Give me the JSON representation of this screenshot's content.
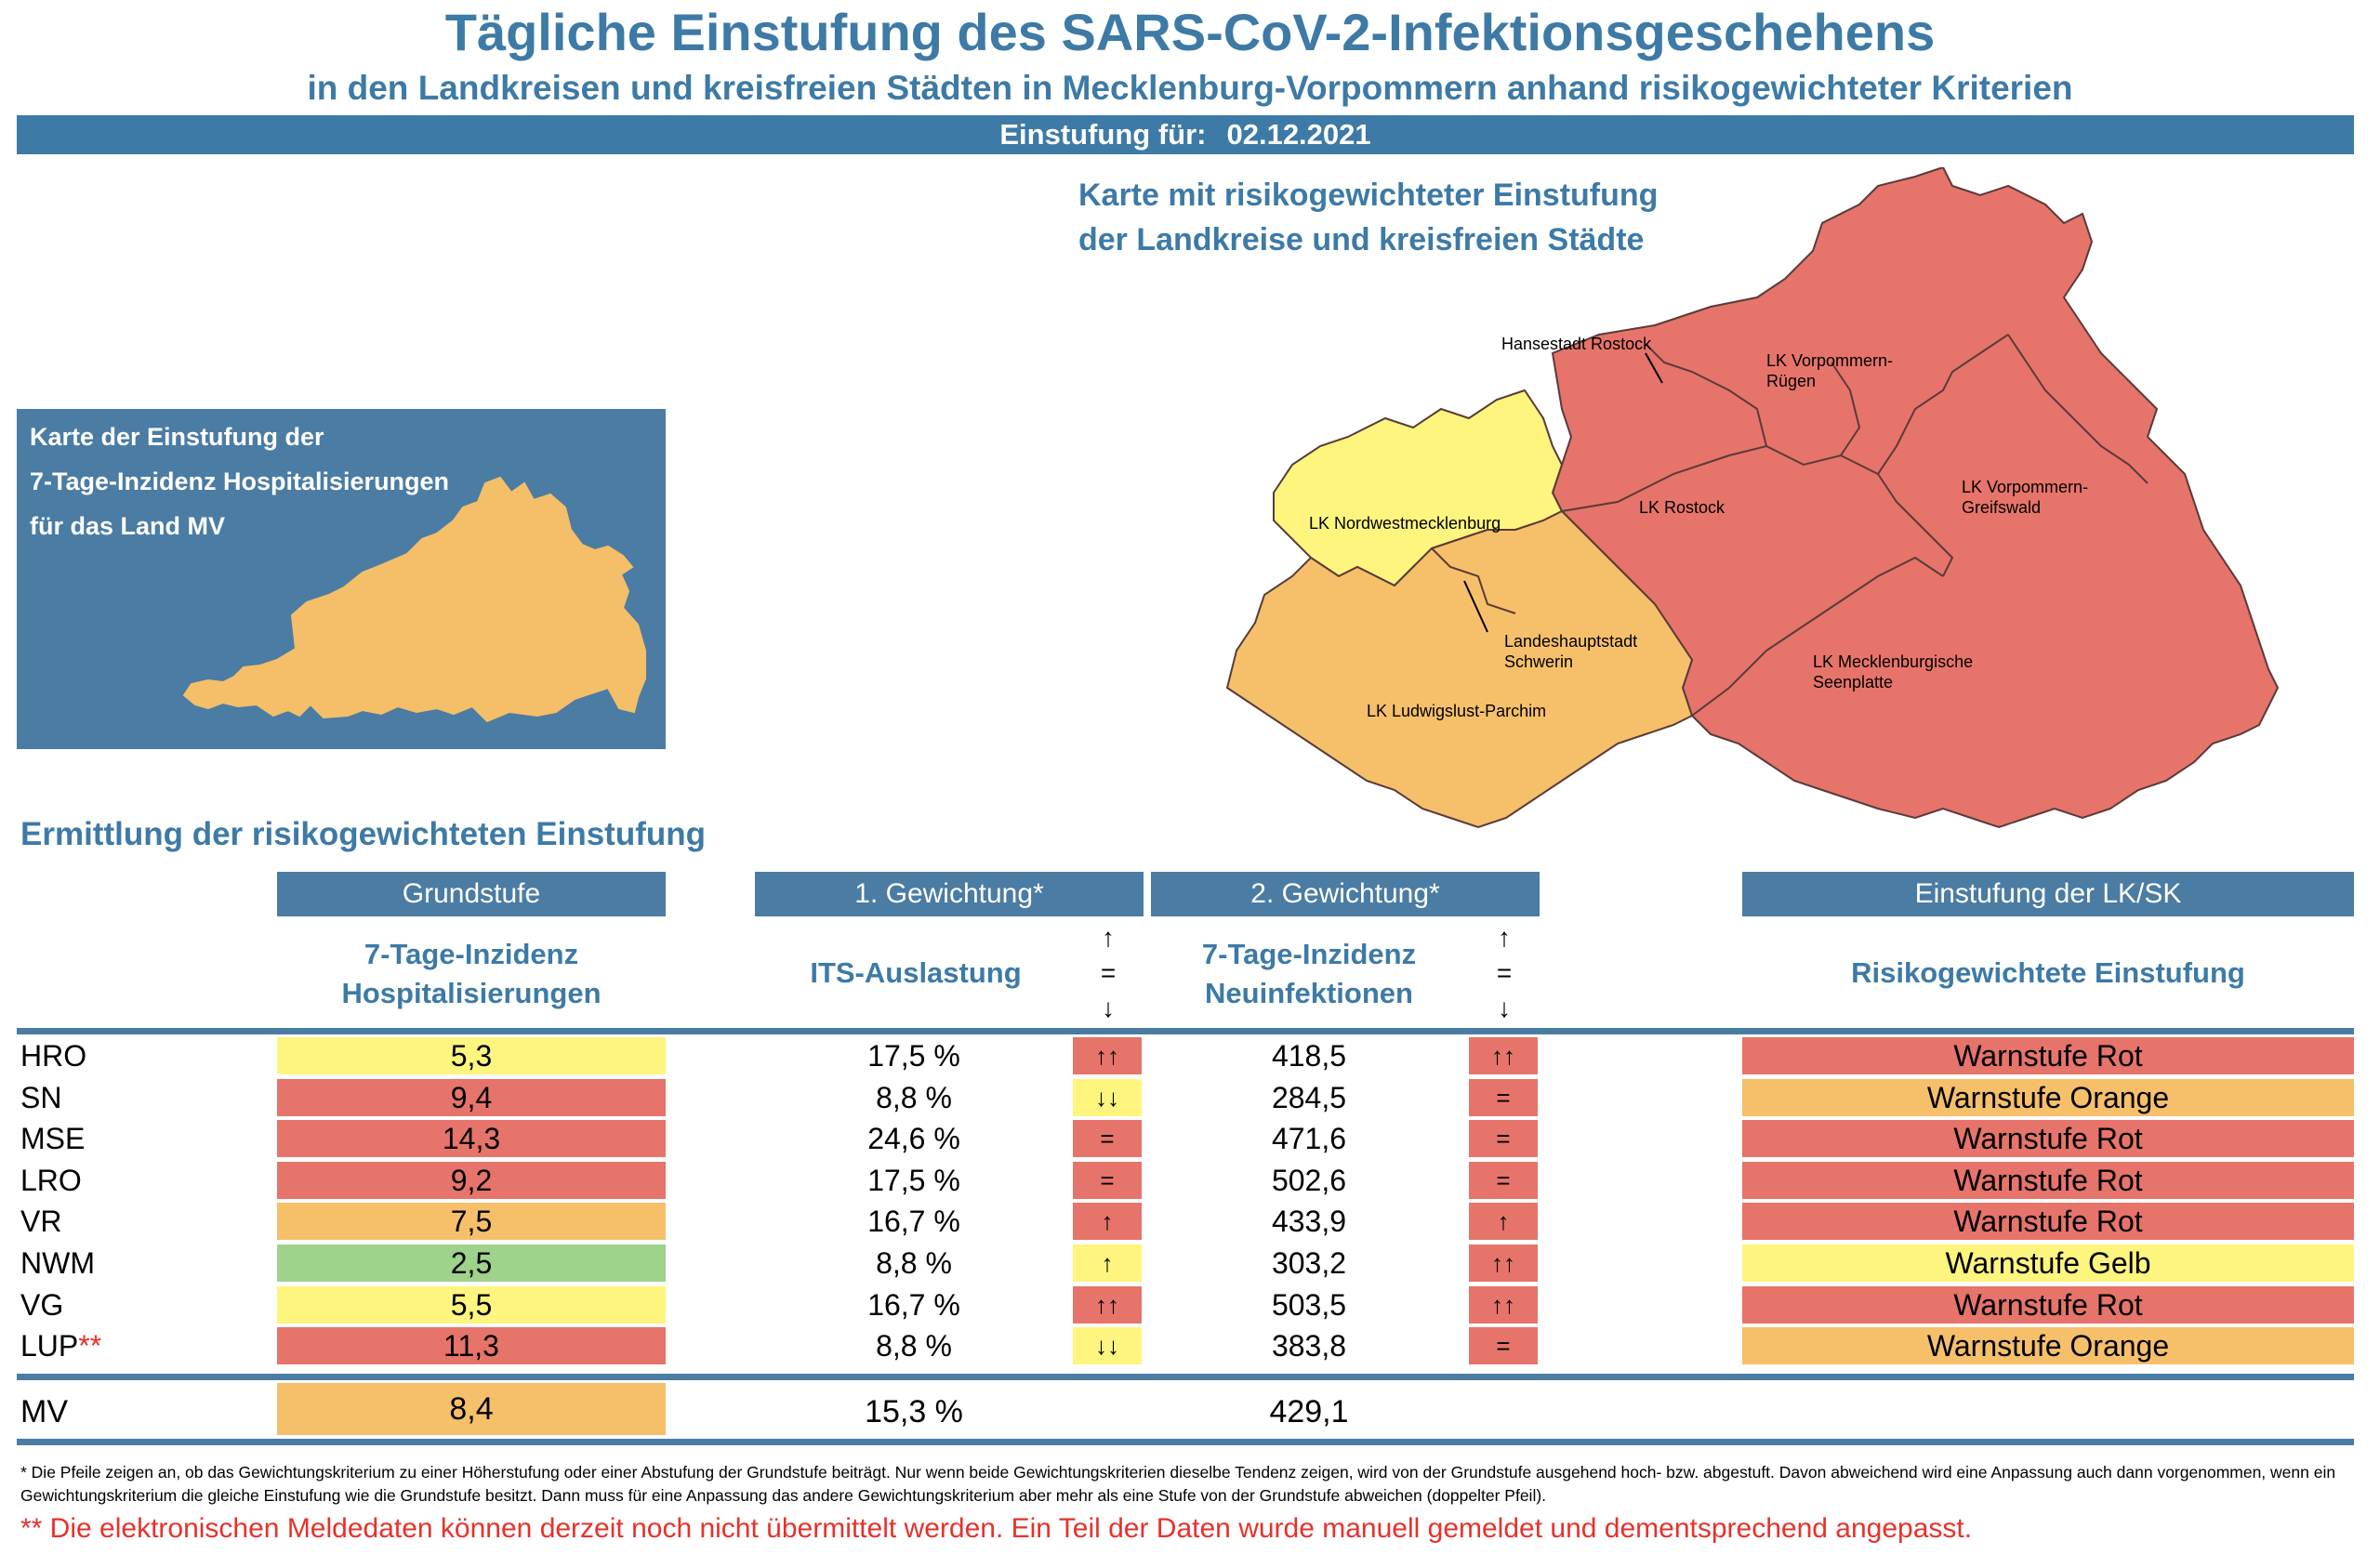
{
  "header": {
    "title": "Tägliche Einstufung des SARS-CoV-2-Infektionsgeschehens",
    "subtitle": "in den Landkreisen und kreisfreien Städten in Mecklenburg-Vorpommern anhand risikogewichteter Kriterien",
    "date_label": "Einstufung für:",
    "date_value": "02.12.2021"
  },
  "small_map": {
    "lines": [
      "Karte der Einstufung der",
      "7-Tage-Inzidenz Hospitalisierungen",
      "für das Land MV"
    ]
  },
  "big_map": {
    "title_line1": "Karte mit risikogewichteter Einstufung",
    "title_line2": "der Landkreise und kreisfreien Städte",
    "labels": {
      "hro": "Hansestadt Rostock",
      "vr1": "LK Vorpommern-",
      "vr2": "Rügen",
      "nwm": "LK Nordwestmecklenburg",
      "lro": "LK Rostock",
      "vg1": "LK Vorpommern-",
      "vg2": "Greifswald",
      "sn1": "Landeshauptstadt",
      "sn2": "Schwerin",
      "mse1": "LK Mecklenburgische",
      "mse2": "Seenplatte",
      "lup": "LK Ludwigslust-Parchim"
    }
  },
  "table": {
    "section_title": "Ermittlung der risikogewichteten Einstufung",
    "headers": {
      "grundstufe": "Grundstufe",
      "gew1": "1. Gewichtung*",
      "gew2": "2. Gewichtung*",
      "einstufung": "Einstufung der LK/SK"
    },
    "subheaders": {
      "hosp1": "7-Tage-Inzidenz",
      "hosp2": "Hospitalisierungen",
      "its": "ITS-Auslastung",
      "inz1": "7-Tage-Inzidenz",
      "inz2": "Neuinfektionen",
      "risk": "Risikogewichtete Einstufung"
    },
    "legend_arrows": {
      "up": "↑",
      "eq": "=",
      "down": "↓"
    },
    "rows": [
      {
        "name": "HRO",
        "marker": "",
        "hosp": "5,3",
        "hosp_color": "#fdf57d",
        "its": "17,5 %",
        "arrow1": "↑↑",
        "arrow1_color": "#e6746a",
        "inz": "418,5",
        "arrow2": "↑↑",
        "arrow2_color": "#e6746a",
        "result": "Warnstufe Rot",
        "result_color": "#e6746a"
      },
      {
        "name": "SN",
        "marker": "",
        "hosp": "9,4",
        "hosp_color": "#e6746a",
        "its": "8,8 %",
        "arrow1": "↓↓",
        "arrow1_color": "#fdf57d",
        "inz": "284,5",
        "arrow2": "=",
        "arrow2_color": "#e6746a",
        "result": "Warnstufe Orange",
        "result_color": "#f6c06a"
      },
      {
        "name": "MSE",
        "marker": "",
        "hosp": "14,3",
        "hosp_color": "#e6746a",
        "its": "24,6 %",
        "arrow1": "=",
        "arrow1_color": "#e6746a",
        "inz": "471,6",
        "arrow2": "=",
        "arrow2_color": "#e6746a",
        "result": "Warnstufe Rot",
        "result_color": "#e6746a"
      },
      {
        "name": "LRO",
        "marker": "",
        "hosp": "9,2",
        "hosp_color": "#e6746a",
        "its": "17,5 %",
        "arrow1": "=",
        "arrow1_color": "#e6746a",
        "inz": "502,6",
        "arrow2": "=",
        "arrow2_color": "#e6746a",
        "result": "Warnstufe Rot",
        "result_color": "#e6746a"
      },
      {
        "name": "VR",
        "marker": "",
        "hosp": "7,5",
        "hosp_color": "#f6c06a",
        "its": "16,7 %",
        "arrow1": "↑",
        "arrow1_color": "#e6746a",
        "inz": "433,9",
        "arrow2": "↑",
        "arrow2_color": "#e6746a",
        "result": "Warnstufe Rot",
        "result_color": "#e6746a"
      },
      {
        "name": "NWM",
        "marker": "",
        "hosp": "2,5",
        "hosp_color": "#9fd28a",
        "its": "8,8 %",
        "arrow1": "↑",
        "arrow1_color": "#fdf57d",
        "inz": "303,2",
        "arrow2": "↑↑",
        "arrow2_color": "#e6746a",
        "result": "Warnstufe Gelb",
        "result_color": "#fdf57d"
      },
      {
        "name": "VG",
        "marker": "",
        "hosp": "5,5",
        "hosp_color": "#fdf57d",
        "its": "16,7 %",
        "arrow1": "↑↑",
        "arrow1_color": "#e6746a",
        "inz": "503,5",
        "arrow2": "↑↑",
        "arrow2_color": "#e6746a",
        "result": "Warnstufe Rot",
        "result_color": "#e6746a"
      },
      {
        "name": "LUP",
        "marker": "**",
        "hosp": "11,3",
        "hosp_color": "#e6746a",
        "its": "8,8 %",
        "arrow1": "↓↓",
        "arrow1_color": "#fdf57d",
        "inz": "383,8",
        "arrow2": "=",
        "arrow2_color": "#e6746a",
        "result": "Warnstufe Orange",
        "result_color": "#f6c06a"
      }
    ],
    "total": {
      "name": "MV",
      "hosp": "8,4",
      "hosp_color": "#f6c06a",
      "its": "15,3 %",
      "inz": "429,1"
    }
  },
  "footnote": "* Die Pfeile zeigen an, ob das Gewichtungskriterium zu einer Höherstufung oder einer Abstufung der Grundstufe beiträgt. Nur wenn beide Gewichtungskriterien dieselbe Tendenz zeigen, wird von der Grundstufe ausgehend hoch- bzw. abgestuft.  Davon abweichend wird eine Anpassung auch dann vorgenommen, wenn ein Gewichtungskriterium die gleiche Einstufung wie die Grundstufe besitzt. Dann muss für eine Anpassung das andere Gewichtungskriterium aber mehr als eine Stufe von der Grundstufe abweichen (doppelter Pfeil).",
  "bottom_note": "** Die elektronischen Meldedaten können derzeit noch nicht übermittelt werden. Ein Teil der Daten wurde manuell gemeldet und dementsprechend angepasst.",
  "colors": {
    "red": "#e6746a",
    "orange": "#f6c06a",
    "yellow": "#fdf57d",
    "green": "#9fd28a",
    "blue": "#4a7ca4"
  }
}
